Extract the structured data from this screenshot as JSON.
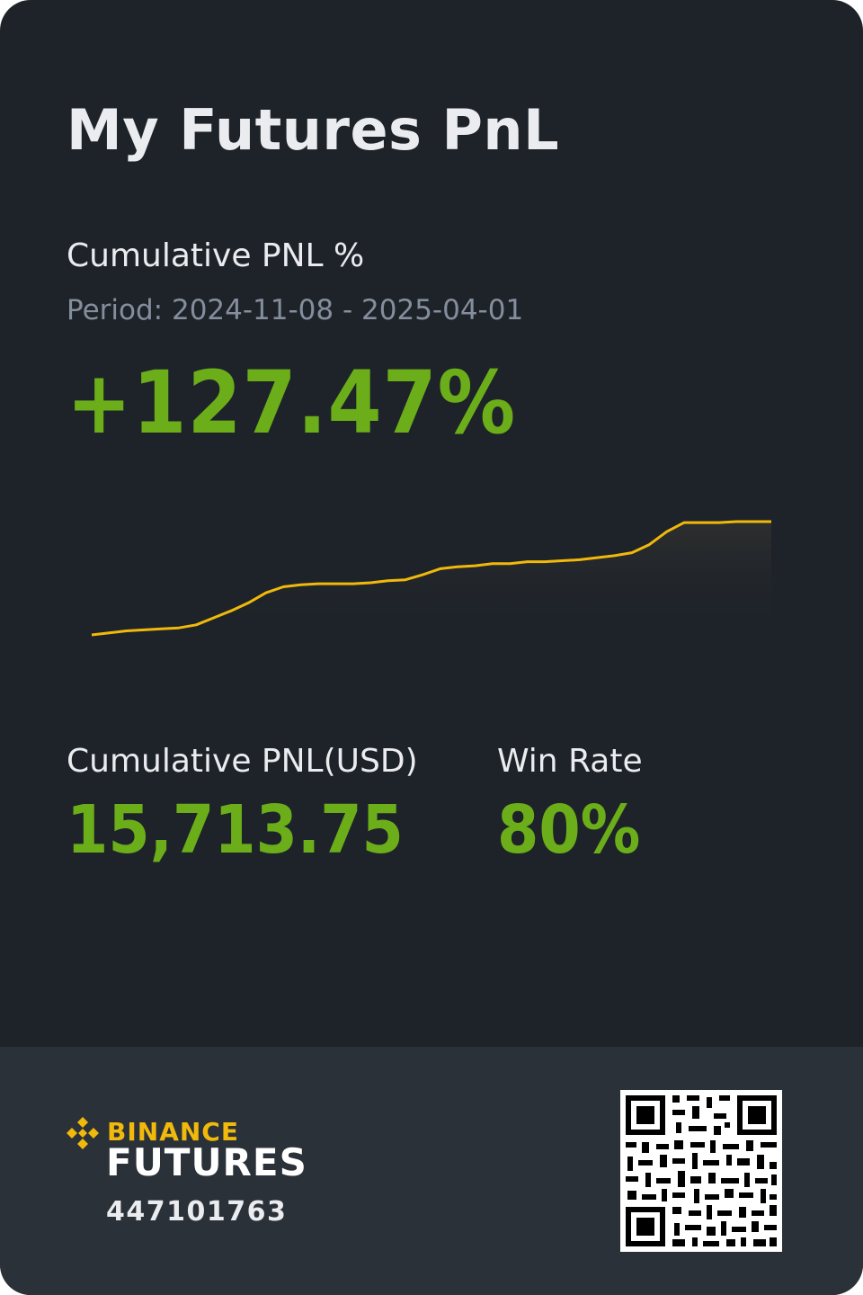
{
  "header": {
    "title": "My Futures PnL"
  },
  "pnl_percent": {
    "label": "Cumulative PNL %",
    "period_prefix": "Period:",
    "period": "2024-11-08 - 2025-04-01",
    "value": "+127.47%"
  },
  "stats": {
    "pnl_usd_label": "Cumulative PNL(USD)",
    "pnl_usd_value": "15,713.75",
    "win_rate_label": "Win Rate",
    "win_rate_value": "80%"
  },
  "footer": {
    "brand": "BINANCE",
    "product": "FUTURES",
    "account_id": "447101763"
  },
  "colors": {
    "card_bg": "#1e2329",
    "footer_bg": "#2b3139",
    "positive": "#6bae1a",
    "line": "#f0b90b",
    "muted": "#848e9c"
  },
  "chart_data": {
    "type": "line",
    "series": [
      {
        "values": [
          0,
          2,
          4,
          5,
          6,
          7,
          10,
          17,
          24,
          32,
          42,
          48,
          50,
          51,
          51,
          51,
          52,
          54,
          55,
          60,
          66,
          68,
          69,
          71,
          71,
          73,
          73,
          74,
          75,
          77,
          79,
          82,
          90,
          103,
          112,
          112,
          112,
          113,
          113,
          113
        ]
      }
    ]
  }
}
